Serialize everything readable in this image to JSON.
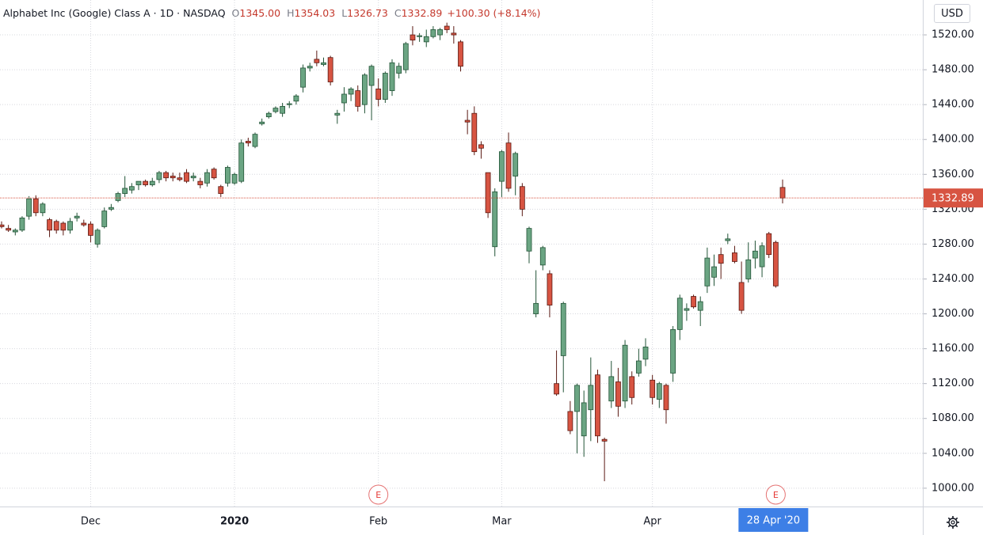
{
  "chart_data": {
    "type": "candlestick",
    "symbol": "Alphabet Inc (Google) Class A · 1D · NASDAQ",
    "ohlc_keys": [
      "O",
      "H",
      "L",
      "C"
    ],
    "ohlc_values": [
      "1345.00",
      "1354.03",
      "1326.73",
      "1332.89"
    ],
    "change": "+100.30 (+8.14%)",
    "currency": "USD",
    "last_price": 1332.89,
    "last_price_label": "1332.89",
    "up_color": "#6ba583",
    "up_border": "#225437",
    "down_color": "#d75442",
    "down_border": "#5b1a13",
    "grid": true,
    "ylim": [
      979,
      1560
    ],
    "yticks": [
      {
        "value": 1000,
        "label": "1000.00"
      },
      {
        "value": 1040,
        "label": "1040.00"
      },
      {
        "value": 1080,
        "label": "1080.00"
      },
      {
        "value": 1120,
        "label": "1120.00"
      },
      {
        "value": 1160,
        "label": "1160.00"
      },
      {
        "value": 1200,
        "label": "1200.00"
      },
      {
        "value": 1240,
        "label": "1240.00"
      },
      {
        "value": 1280,
        "label": "1280.00"
      },
      {
        "value": 1320,
        "label": "1320.00"
      },
      {
        "value": 1360,
        "label": "1360.00"
      },
      {
        "value": 1400,
        "label": "1400.00"
      },
      {
        "value": 1440,
        "label": "1440.00"
      },
      {
        "value": 1480,
        "label": "1480.00"
      },
      {
        "value": 1520,
        "label": "1520.00"
      }
    ],
    "categories": [
      null,
      null,
      null,
      null,
      null,
      null,
      null,
      null,
      null,
      null,
      null,
      null,
      null,
      "Dec",
      null,
      null,
      null,
      null,
      null,
      null,
      null,
      null,
      null,
      null,
      null,
      null,
      null,
      null,
      null,
      null,
      null,
      null,
      null,
      null,
      "2020",
      null,
      null,
      null,
      null,
      null,
      null,
      null,
      null,
      null,
      null,
      null,
      null,
      null,
      null,
      null,
      null,
      null,
      null,
      null,
      null,
      "Feb",
      null,
      null,
      null,
      null,
      null,
      null,
      null,
      null,
      null,
      null,
      null,
      null,
      null,
      null,
      null,
      null,
      null,
      "Mar",
      null,
      null,
      null,
      null,
      null,
      null,
      null,
      null,
      null,
      null,
      null,
      null,
      null,
      null,
      null,
      null,
      null,
      null,
      null,
      null,
      null,
      "Apr",
      null,
      null,
      null,
      null,
      null,
      null,
      null,
      null,
      null,
      null,
      null,
      null,
      null,
      null,
      null,
      null,
      null,
      null,
      null
    ],
    "events": [
      null,
      null,
      null,
      null,
      null,
      null,
      null,
      null,
      null,
      null,
      null,
      null,
      null,
      null,
      null,
      null,
      null,
      null,
      null,
      null,
      null,
      null,
      null,
      null,
      null,
      null,
      null,
      null,
      null,
      null,
      null,
      null,
      null,
      null,
      null,
      null,
      null,
      null,
      null,
      null,
      null,
      null,
      null,
      null,
      null,
      null,
      null,
      null,
      null,
      null,
      null,
      null,
      null,
      null,
      null,
      "E",
      null,
      null,
      null,
      null,
      null,
      null,
      null,
      null,
      null,
      null,
      null,
      null,
      null,
      null,
      null,
      null,
      null,
      null,
      null,
      null,
      null,
      null,
      null,
      null,
      null,
      null,
      null,
      null,
      null,
      null,
      null,
      null,
      null,
      null,
      null,
      null,
      null,
      null,
      null,
      null,
      null,
      null,
      null,
      null,
      null,
      null,
      null,
      null,
      null,
      null,
      null,
      null,
      null,
      null,
      null,
      null,
      null,
      "E",
      null
    ],
    "cursor": [
      null,
      null,
      null,
      null,
      null,
      null,
      null,
      null,
      null,
      null,
      null,
      null,
      null,
      null,
      null,
      null,
      null,
      null,
      null,
      null,
      null,
      null,
      null,
      null,
      null,
      null,
      null,
      null,
      null,
      null,
      null,
      null,
      null,
      null,
      null,
      null,
      null,
      null,
      null,
      null,
      null,
      null,
      null,
      null,
      null,
      null,
      null,
      null,
      null,
      null,
      null,
      null,
      null,
      null,
      null,
      null,
      null,
      null,
      null,
      null,
      null,
      null,
      null,
      null,
      null,
      null,
      null,
      null,
      null,
      null,
      null,
      null,
      null,
      null,
      null,
      null,
      null,
      null,
      null,
      null,
      null,
      null,
      null,
      null,
      null,
      null,
      null,
      null,
      null,
      null,
      null,
      null,
      null,
      null,
      null,
      null,
      null,
      null,
      null,
      null,
      null,
      null,
      null,
      null,
      null,
      null,
      null,
      null,
      null,
      null,
      null,
      null,
      null,
      "28 Apr '20",
      null
    ],
    "open": [
      1302,
      1298,
      1294,
      1296,
      1312,
      1332,
      1316,
      1308,
      1306,
      1304,
      1296,
      1310,
      1304,
      1303,
      1280,
      1300,
      1320,
      1330,
      1338,
      1342,
      1348,
      1352,
      1348,
      1354,
      1362,
      1358,
      1356,
      1362,
      1356,
      1352,
      1350,
      1366,
      1346,
      1350,
      1350,
      1352,
      1398,
      1392,
      1418,
      1426,
      1432,
      1430,
      1440,
      1444,
      1460,
      1482,
      1492,
      1486,
      1494,
      1428,
      1442,
      1452,
      1456,
      1440,
      1462,
      1458,
      1446,
      1456,
      1476,
      1480,
      1520,
      1518,
      1512,
      1518,
      1520,
      1530,
      1522,
      1512,
      1422,
      1430,
      1394,
      1362,
      1277,
      1352,
      1396,
      1358,
      1346,
      1272,
      1200,
      1256,
      1246,
      1120,
      1152,
      1088,
      1088,
      1060,
      1090,
      1130,
      1056,
      1100,
      1122,
      1100,
      1128,
      1132,
      1148,
      1124,
      1102,
      1118,
      1132,
      1182,
      1204,
      1220,
      1204,
      1232,
      1242,
      1268,
      1284,
      1270,
      1236,
      1240,
      1264,
      1254,
      1292,
      1282,
      1345
    ],
    "high": [
      1306,
      1302,
      1298,
      1312,
      1335,
      1336,
      1328,
      1310,
      1308,
      1306,
      1310,
      1316,
      1308,
      1306,
      1298,
      1322,
      1326,
      1340,
      1358,
      1350,
      1352,
      1354,
      1356,
      1364,
      1364,
      1362,
      1362,
      1366,
      1362,
      1356,
      1366,
      1368,
      1348,
      1370,
      1362,
      1400,
      1402,
      1408,
      1424,
      1432,
      1438,
      1442,
      1444,
      1452,
      1486,
      1488,
      1502,
      1494,
      1496,
      1434,
      1460,
      1460,
      1462,
      1476,
      1486,
      1470,
      1478,
      1492,
      1488,
      1512,
      1530,
      1522,
      1526,
      1530,
      1528,
      1534,
      1530,
      1514,
      1434,
      1438,
      1398,
      1362,
      1344,
      1388,
      1408,
      1386,
      1350,
      1300,
      1250,
      1278,
      1250,
      1158,
      1214,
      1100,
      1120,
      1112,
      1150,
      1136,
      1058,
      1146,
      1138,
      1170,
      1134,
      1160,
      1172,
      1130,
      1122,
      1120,
      1186,
      1222,
      1212,
      1222,
      1220,
      1276,
      1268,
      1276,
      1292,
      1278,
      1260,
      1282,
      1284,
      1282,
      1294,
      1284,
      1354.03
    ],
    "low": [
      1298,
      1294,
      1290,
      1294,
      1308,
      1312,
      1312,
      1288,
      1292,
      1290,
      1292,
      1306,
      1300,
      1282,
      1276,
      1298,
      1318,
      1328,
      1334,
      1338,
      1342,
      1346,
      1346,
      1350,
      1352,
      1352,
      1352,
      1350,
      1352,
      1344,
      1346,
      1354,
      1334,
      1346,
      1348,
      1350,
      1392,
      1390,
      1416,
      1424,
      1430,
      1426,
      1436,
      1440,
      1454,
      1478,
      1484,
      1484,
      1462,
      1418,
      1432,
      1444,
      1432,
      1430,
      1422,
      1438,
      1442,
      1450,
      1470,
      1476,
      1508,
      1512,
      1506,
      1516,
      1514,
      1522,
      1510,
      1478,
      1406,
      1382,
      1378,
      1310,
      1266,
      1334,
      1340,
      1336,
      1312,
      1258,
      1196,
      1250,
      1196,
      1106,
      1110,
      1062,
      1040,
      1036,
      1054,
      1052,
      1008,
      1092,
      1082,
      1092,
      1096,
      1128,
      1140,
      1096,
      1092,
      1074,
      1122,
      1170,
      1192,
      1206,
      1186,
      1224,
      1232,
      1240,
      1280,
      1258,
      1200,
      1236,
      1252,
      1242,
      1264,
      1230,
      1326.73
    ],
    "close": [
      1300,
      1296,
      1296,
      1310,
      1332,
      1316,
      1326,
      1296,
      1296,
      1296,
      1306,
      1312,
      1302,
      1290,
      1296,
      1318,
      1322,
      1338,
      1344,
      1346,
      1352,
      1348,
      1352,
      1362,
      1356,
      1356,
      1354,
      1352,
      1358,
      1348,
      1362,
      1356,
      1338,
      1368,
      1360,
      1396,
      1396,
      1406,
      1420,
      1430,
      1436,
      1438,
      1441,
      1450,
      1482,
      1484,
      1488,
      1488,
      1466,
      1430,
      1452,
      1458,
      1438,
      1474,
      1484,
      1446,
      1476,
      1488,
      1484,
      1510,
      1514,
      1519,
      1518,
      1526,
      1526,
      1526,
      1520,
      1484,
      1420,
      1386,
      1390,
      1316,
      1340,
      1386,
      1344,
      1384,
      1320,
      1298,
      1212,
      1276,
      1210,
      1108,
      1212,
      1066,
      1118,
      1098,
      1118,
      1060,
      1054,
      1128,
      1094,
      1164,
      1104,
      1146,
      1162,
      1104,
      1120,
      1090,
      1182,
      1218,
      1206,
      1208,
      1214,
      1264,
      1254,
      1258,
      1286,
      1260,
      1204,
      1262,
      1272,
      1278,
      1268,
      1232,
      1332.89
    ]
  }
}
